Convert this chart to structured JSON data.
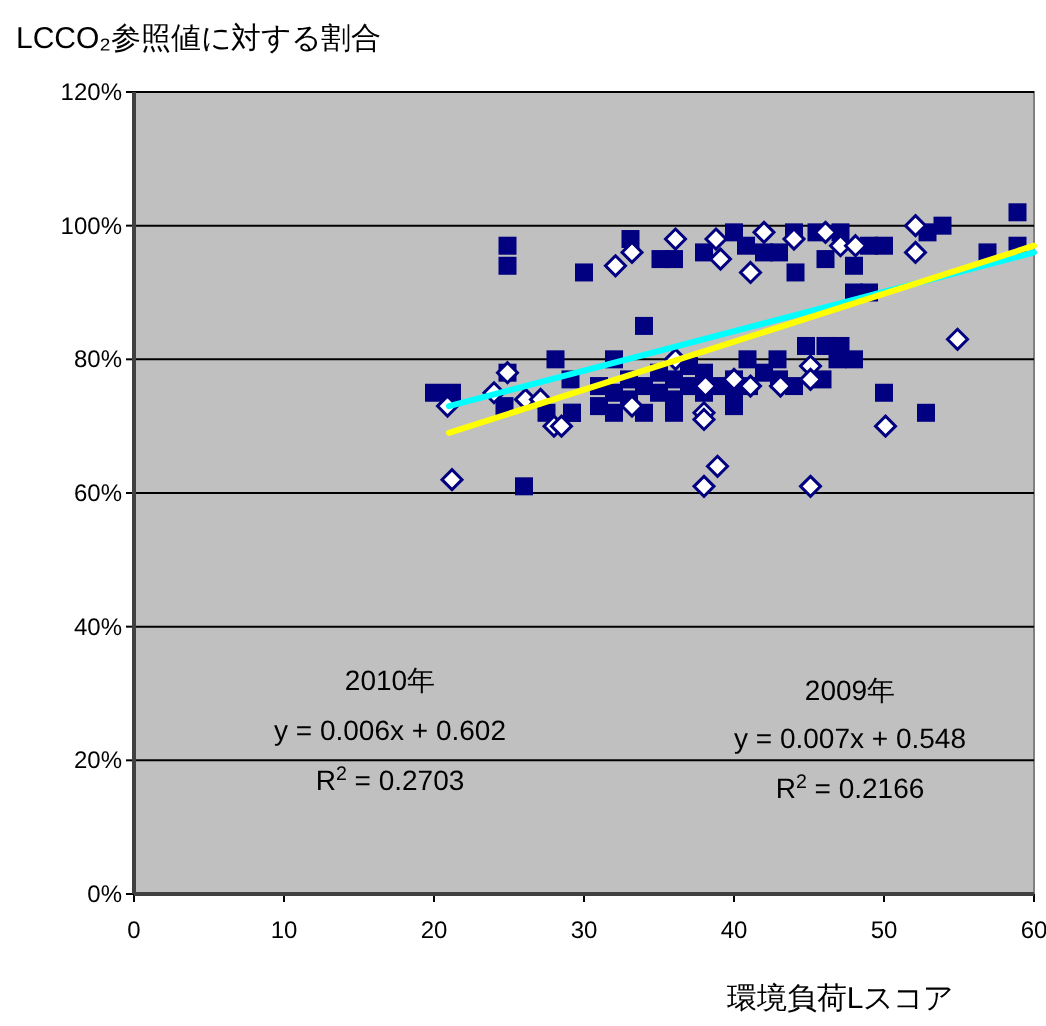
{
  "chart_data": {
    "type": "scatter",
    "title": "LCCO₂参照値に対する割合",
    "xlabel": "環境負荷Lスコア",
    "annotations": [
      "2010年",
      "y = 0.006x + 0.602",
      "R$^{2}$ = 0.2703",
      "2009年",
      "y = 0.007x + 0.548",
      "R$^{2}$ = 0.2166"
    ],
    "xlim": [
      0,
      60
    ],
    "xticks": [
      0,
      10,
      20,
      30,
      40,
      50,
      60
    ],
    "ylim": [
      0,
      120
    ],
    "yticks": [
      {
        "value": 0,
        "label": "0%"
      },
      {
        "value": 20,
        "label": "20%"
      },
      {
        "value": 40,
        "label": "40%"
      },
      {
        "value": 60,
        "label": "60%"
      },
      {
        "value": 80,
        "label": "80%"
      },
      {
        "value": 100,
        "label": "100%"
      },
      {
        "value": 120,
        "label": "120%"
      }
    ],
    "grid": "y",
    "series": [
      {
        "marker": "square",
        "color": "#000080",
        "x": [
          20.0,
          24.9,
          24.9,
          30.0,
          26.0,
          28.1,
          24.9,
          21.2,
          29.1,
          29.2,
          24.7,
          27.5,
          33.1,
          35.1,
          36,
          38,
          40,
          40.8,
          42,
          43,
          44,
          44.1,
          45.5,
          46.1,
          47.1,
          48,
          49,
          50,
          48,
          49,
          52.9,
          53.9,
          56.9,
          58.9,
          58.9,
          34,
          44.8,
          46.1,
          47.1,
          48,
          46.9,
          45.9,
          50,
          52.8,
          42.9,
          40.9,
          32,
          29.2,
          32,
          34,
          36,
          40,
          31,
          31,
          32,
          33,
          33,
          34,
          35,
          35,
          36,
          36,
          37,
          37,
          38,
          38,
          39,
          40,
          40,
          41,
          42,
          43,
          44
        ],
        "values": [
          75,
          97,
          94,
          93,
          61,
          80,
          78,
          75,
          77,
          72,
          73,
          72,
          98,
          95,
          95,
          96,
          99,
          97,
          96,
          96,
          99,
          93,
          99,
          95,
          99,
          94,
          97,
          97,
          90,
          90,
          99,
          100,
          96,
          102,
          97,
          85,
          82,
          82,
          82,
          80,
          80,
          77,
          75,
          72,
          80,
          80,
          80,
          72,
          72,
          72,
          72,
          73,
          73,
          76,
          75,
          77,
          74,
          76,
          75,
          78,
          74,
          77,
          76,
          79,
          75,
          78,
          76,
          75,
          77,
          76,
          78,
          77,
          76
        ]
      },
      {
        "marker": "diamond",
        "color": "#ffffff",
        "x": [
          21.2,
          20.9,
          24,
          26.1,
          28,
          24.9,
          27.1,
          32.1,
          33.2,
          36.1,
          38.8,
          39.1,
          42,
          41.1,
          44,
          46.1,
          47.1,
          48.1,
          52.1,
          52.1,
          54.9,
          50.1,
          45.1,
          45.1,
          38,
          38,
          38.9,
          38,
          45.1,
          33.2,
          40,
          41.1,
          43.1,
          38.1,
          28.5,
          36.1
        ],
        "values": [
          62,
          73,
          75,
          74,
          70,
          78,
          74,
          94,
          96,
          98,
          98,
          95,
          99,
          93,
          98,
          99,
          97,
          97,
          100,
          96,
          83,
          70,
          79,
          77,
          72,
          71,
          64,
          61,
          61,
          73,
          77,
          76,
          76,
          76,
          70,
          80
        ]
      },
      {
        "type": "line",
        "color": "#00ffff",
        "x": [
          21,
          60
        ],
        "values": [
          73,
          96
        ]
      },
      {
        "type": "line",
        "color": "#ffff00",
        "x": [
          21,
          60
        ],
        "values": [
          69,
          97
        ]
      }
    ]
  }
}
